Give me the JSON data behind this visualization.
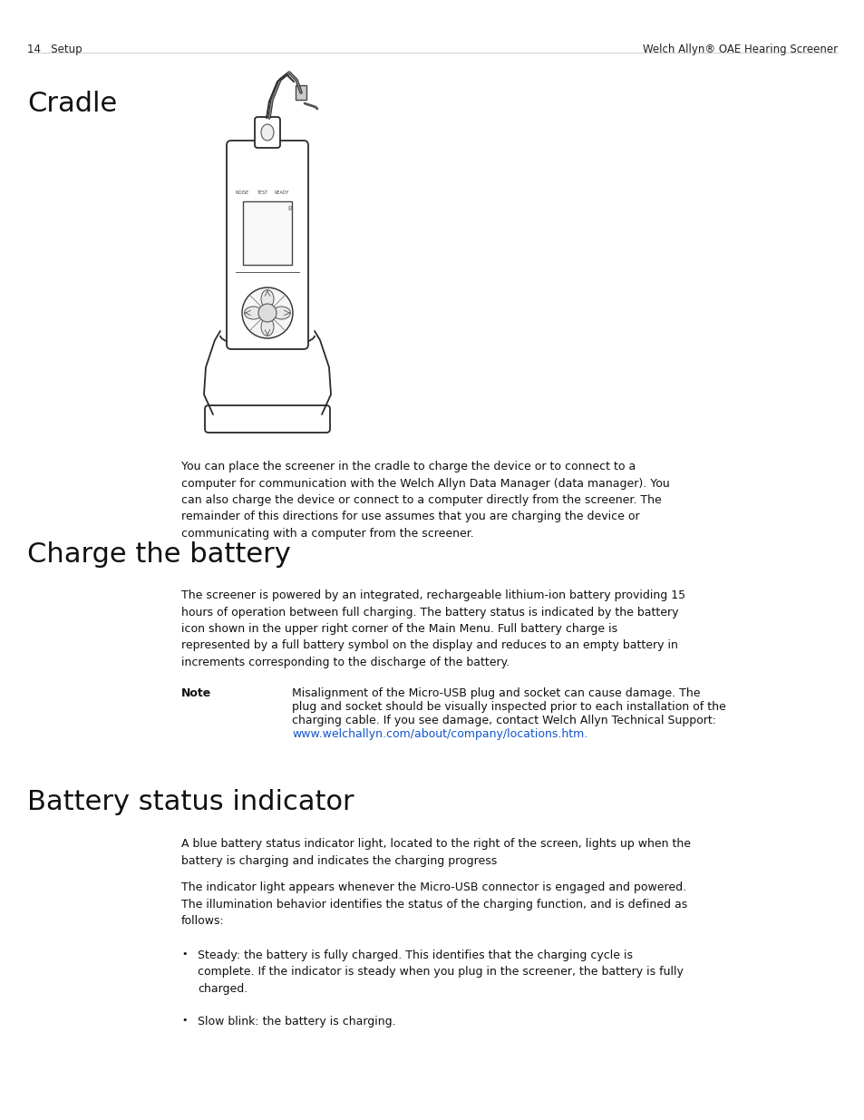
{
  "page_number": "14",
  "left_header": "14   Setup",
  "right_header": "Welch Allyn® OAE Hearing Screener",
  "section1_title": "Cradle",
  "section1_body": "You can place the screener in the cradle to charge the device or to connect to a\ncomputer for communication with the Welch Allyn Data Manager (data manager). You\ncan also charge the device or connect to a computer directly from the screener. The\nremainder of this directions for use assumes that you are charging the device or\ncommunicating with a computer from the screener.",
  "section2_title": "Charge the battery",
  "section2_body": "The screener is powered by an integrated, rechargeable lithium-ion battery providing 15\nhours of operation between full charging. The battery status is indicated by the battery\nicon shown in the upper right corner of the Main Menu. Full battery charge is\nrepresented by a full battery symbol on the display and reduces to an empty battery in\nincrements corresponding to the discharge of the battery.",
  "note_label": "Note",
  "note_body_line1": "Misalignment of the Micro-USB plug and socket can cause damage. The",
  "note_body_line2": "plug and socket should be visually inspected prior to each installation of the",
  "note_body_line3": "charging cable. If you see damage, contact Welch Allyn Technical Support:",
  "note_link": "www.welchallyn.com/about/company/locations.htm",
  "note_link_suffix": ".",
  "section3_title": "Battery status indicator",
  "section3_body1": "A blue battery status indicator light, located to the right of the screen, lights up when the\nbattery is charging and indicates the charging progress",
  "section3_body2": "The indicator light appears whenever the Micro-USB connector is engaged and powered.\nThe illumination behavior identifies the status of the charging function, and is defined as\nfollows:",
  "bullet1": "Steady: the battery is fully charged. This identifies that the charging cycle is\ncomplete. If the indicator is steady when you plug in the screener, the battery is fully\ncharged.",
  "bullet2": "Slow blink: the battery is charging.",
  "bg_color": "#ffffff",
  "text_color": "#000000",
  "link_color": "#1155cc",
  "header_color": "#222222",
  "body_fontsize": 9.0,
  "title_fontsize": 22,
  "header_fontsize": 8.5
}
